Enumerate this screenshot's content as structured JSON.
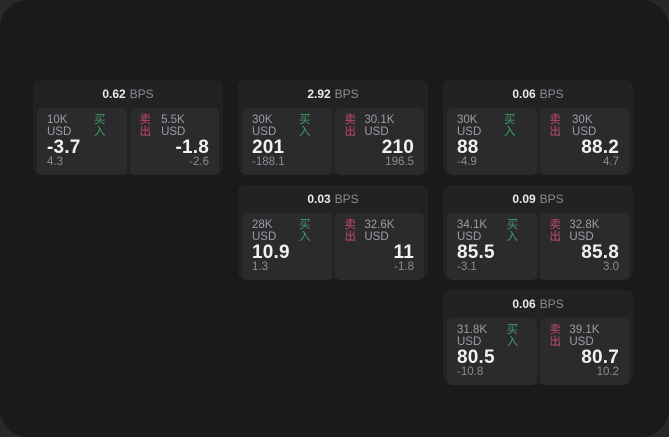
{
  "app": {
    "bps_suffix": "BPS",
    "buy_label": "买入",
    "sell_label": "卖出",
    "colors": {
      "frame_bg": "#28282b",
      "page_bg": "#1a1a1c",
      "card_bg": "#222225",
      "panel_bg": "#2b2b2e",
      "buy_color": "#3f9e63",
      "sell_color": "#c4496b",
      "gray_text": "#8c8c90",
      "notional_text": "#9d9da2"
    }
  },
  "cards": [
    {
      "row": 1,
      "col": 1,
      "bps": "0.62",
      "buy": {
        "notional": "10K USD",
        "value": "-3.7",
        "delta": "4.3"
      },
      "sell": {
        "notional": "5.5K USD",
        "value": "-1.8",
        "delta": "-2.6"
      }
    },
    {
      "row": 1,
      "col": 2,
      "bps": "2.92",
      "buy": {
        "notional": "30K USD",
        "value": "201",
        "delta": "-188.1"
      },
      "sell": {
        "notional": "30.1K USD",
        "value": "210",
        "delta": "196.5"
      }
    },
    {
      "row": 1,
      "col": 3,
      "bps": "0.06",
      "buy": {
        "notional": "30K USD",
        "value": "88",
        "delta": "-4.9"
      },
      "sell": {
        "notional": "30K USD",
        "value": "88.2",
        "delta": "4.7"
      }
    },
    {
      "row": 2,
      "col": 2,
      "bps": "0.03",
      "buy": {
        "notional": "28K USD",
        "value": "10.9",
        "delta": "1.3"
      },
      "sell": {
        "notional": "32.6K USD",
        "value": "11",
        "delta": "-1.8"
      }
    },
    {
      "row": 2,
      "col": 3,
      "bps": "0.09",
      "buy": {
        "notional": "34.1K USD",
        "value": "85.5",
        "delta": "-3.1"
      },
      "sell": {
        "notional": "32.8K USD",
        "value": "85.8",
        "delta": "3.0"
      }
    },
    {
      "row": 3,
      "col": 3,
      "bps": "0.06",
      "buy": {
        "notional": "31.8K USD",
        "value": "80.5",
        "delta": "-10.8"
      },
      "sell": {
        "notional": "39.1K USD",
        "value": "80.7",
        "delta": "10.2"
      }
    }
  ]
}
